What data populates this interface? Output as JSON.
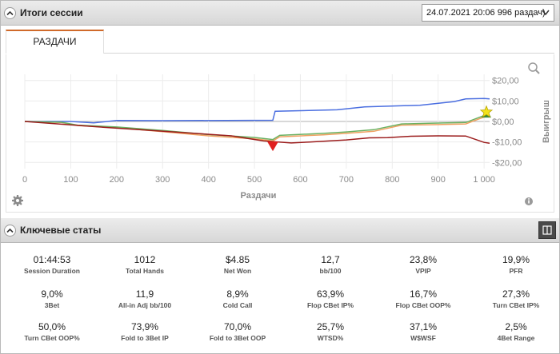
{
  "session_panel": {
    "title": "Итоги сессии",
    "selected_session": "24.07.2021 20:06 996 раздач)"
  },
  "tabs": [
    {
      "label": "РАЗДАЧИ"
    }
  ],
  "chart_data": {
    "type": "line",
    "xlabel": "Раздачи",
    "ylabel": "Выигрыш",
    "xlim": [
      0,
      1012
    ],
    "ylim": [
      -23,
      23
    ],
    "x_ticks": [
      "0",
      "100",
      "200",
      "300",
      "400",
      "500",
      "600",
      "700",
      "800",
      "900",
      "1 000"
    ],
    "y_ticks": [
      "$20,00",
      "$10,00",
      "$0,00",
      "-$10,00",
      "-$20,00"
    ],
    "grid": true,
    "series": [
      {
        "color": "#4a6ee0",
        "points": [
          [
            0,
            0
          ],
          [
            100,
            0
          ],
          [
            150,
            -0.7
          ],
          [
            200,
            0.5
          ],
          [
            300,
            0.4
          ],
          [
            540,
            0.6
          ],
          [
            545,
            5
          ],
          [
            680,
            5.7
          ],
          [
            740,
            7.1
          ],
          [
            860,
            7.9
          ],
          [
            935,
            9.7
          ],
          [
            960,
            11
          ],
          [
            1000,
            11.2
          ],
          [
            1012,
            11
          ]
        ]
      },
      {
        "color": "#f0a060",
        "points": [
          [
            0,
            0
          ],
          [
            80,
            -0.5
          ],
          [
            115,
            -2
          ],
          [
            200,
            -3
          ],
          [
            300,
            -5
          ],
          [
            400,
            -7
          ],
          [
            500,
            -8.5
          ],
          [
            540,
            -9.5
          ],
          [
            555,
            -7.5
          ],
          [
            650,
            -6.5
          ],
          [
            700,
            -5.8
          ],
          [
            760,
            -4.8
          ],
          [
            820,
            -1.8
          ],
          [
            880,
            -1.6
          ],
          [
            960,
            -1.2
          ],
          [
            1000,
            2.2
          ],
          [
            1012,
            2.4
          ]
        ]
      },
      {
        "color": "#6ab060",
        "points": [
          [
            0,
            0
          ],
          [
            80,
            -0.4
          ],
          [
            115,
            -1.8
          ],
          [
            200,
            -2.7
          ],
          [
            300,
            -4.4
          ],
          [
            400,
            -6.4
          ],
          [
            500,
            -7.8
          ],
          [
            540,
            -8.8
          ],
          [
            555,
            -6.8
          ],
          [
            650,
            -5.8
          ],
          [
            700,
            -5.1
          ],
          [
            760,
            -4
          ],
          [
            820,
            -1.2
          ],
          [
            880,
            -0.9
          ],
          [
            960,
            -0.5
          ],
          [
            1000,
            2.9
          ],
          [
            1012,
            3.1
          ]
        ]
      },
      {
        "color": "#9b1c1c",
        "points": [
          [
            0,
            0
          ],
          [
            150,
            -2.5
          ],
          [
            250,
            -4
          ],
          [
            350,
            -5.5
          ],
          [
            450,
            -7
          ],
          [
            520,
            -9.5
          ],
          [
            580,
            -10.5
          ],
          [
            620,
            -10
          ],
          [
            700,
            -9
          ],
          [
            750,
            -8
          ],
          [
            790,
            -7.9
          ],
          [
            840,
            -7.2
          ],
          [
            900,
            -7
          ],
          [
            960,
            -7.1
          ],
          [
            1000,
            -10.2
          ],
          [
            1012,
            -10.6
          ]
        ]
      }
    ],
    "markers": [
      {
        "name": "min-marker",
        "x": 540,
        "y": -9.8,
        "color": "#e02020"
      },
      {
        "name": "max-marker",
        "x": 1005,
        "y": 2.3,
        "color": "#f2e21c"
      }
    ]
  },
  "key_stats": {
    "title": "Ключевые статы",
    "items": [
      {
        "value": "01:44:53",
        "label": "Session Duration"
      },
      {
        "value": "1012",
        "label": "Total Hands"
      },
      {
        "value": "$4.85",
        "label": "Net Won"
      },
      {
        "value": "12,7",
        "label": "bb/100"
      },
      {
        "value": "23,8%",
        "label": "VPIP"
      },
      {
        "value": "19,9%",
        "label": "PFR"
      },
      {
        "value": "9,0%",
        "label": "3Bet"
      },
      {
        "value": "11,9",
        "label": "All-in Adj bb/100"
      },
      {
        "value": "8,9%",
        "label": "Cold Call"
      },
      {
        "value": "63,9%",
        "label": "Flop CBet IP%"
      },
      {
        "value": "16,7%",
        "label": "Flop CBet OOP%"
      },
      {
        "value": "27,3%",
        "label": "Turn CBet IP%"
      },
      {
        "value": "50,0%",
        "label": "Turn CBet OOP%"
      },
      {
        "value": "73,9%",
        "label": "Fold to 3Bet IP"
      },
      {
        "value": "70,0%",
        "label": "Fold to 3Bet OOP"
      },
      {
        "value": "25,7%",
        "label": "WTSD%"
      },
      {
        "value": "37,1%",
        "label": "W$WSF"
      },
      {
        "value": "2,5%",
        "label": "4Bet Range"
      }
    ]
  },
  "icons": [
    "collapse-icon",
    "chevron-down-icon",
    "zoom-icon",
    "settings-icon",
    "info-icon",
    "layout-icon"
  ]
}
